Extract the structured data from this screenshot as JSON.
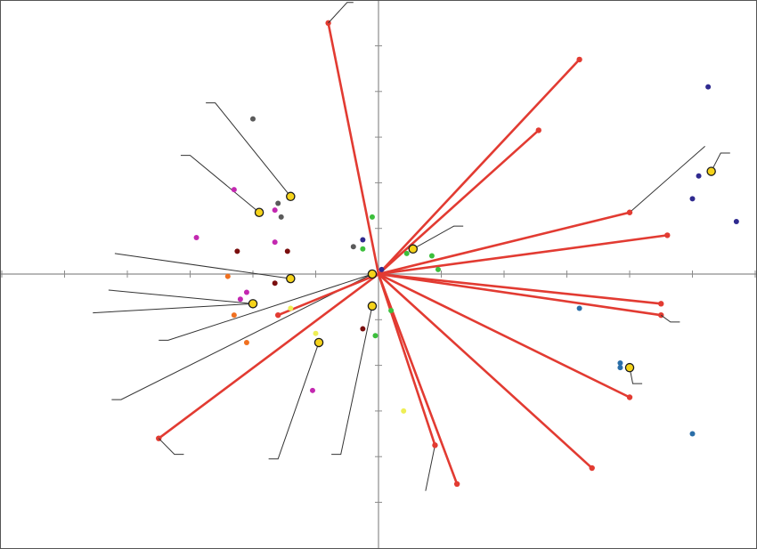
{
  "chart_data": {
    "type": "scatter",
    "title": "",
    "xlabel": "",
    "ylabel": "",
    "xlim": [
      -6,
      6
    ],
    "ylim": [
      -6,
      6
    ],
    "tick_step": 1,
    "grid": false,
    "legend": "none",
    "colors": {
      "frame": "#555555",
      "axis": "#8c8c8c",
      "vector": "#e23b32",
      "leader": "#333333",
      "highlight_fill": "#f5d31a",
      "highlight_stroke": "#1a1a1a"
    },
    "vectors": [
      {
        "x": -0.8,
        "y": 5.5
      },
      {
        "x": 3.2,
        "y": 4.7
      },
      {
        "x": 2.55,
        "y": 3.15
      },
      {
        "x": 4.0,
        "y": 1.35
      },
      {
        "x": 4.6,
        "y": 0.85
      },
      {
        "x": 4.5,
        "y": -0.65
      },
      {
        "x": 4.5,
        "y": -0.9
      },
      {
        "x": 4.0,
        "y": -2.7
      },
      {
        "x": 3.4,
        "y": -4.25
      },
      {
        "x": 1.25,
        "y": -4.6
      },
      {
        "x": 0.9,
        "y": -3.75
      },
      {
        "x": -3.5,
        "y": -3.6
      },
      {
        "x": -1.6,
        "y": -0.9
      }
    ],
    "vector_label_leaders": [
      {
        "x": -0.8,
        "y": 5.5,
        "elbow": [
          -0.5,
          5.95
        ],
        "end": [
          -0.4,
          5.95
        ]
      },
      {
        "x": -3.5,
        "y": -3.6,
        "elbow": [
          -3.25,
          -3.95
        ],
        "end": [
          -3.1,
          -3.95
        ]
      },
      {
        "x": 4.5,
        "y": -0.9,
        "elbow": [
          4.65,
          -1.05
        ],
        "end": [
          4.8,
          -1.05
        ]
      }
    ],
    "highlighted_points": [
      {
        "x": -1.4,
        "y": 1.7
      },
      {
        "x": -1.9,
        "y": 1.35
      },
      {
        "x": 0.55,
        "y": 0.55
      },
      {
        "x": -1.4,
        "y": -0.1
      },
      {
        "x": -2.0,
        "y": -0.65
      },
      {
        "x": -0.95,
        "y": -1.5
      },
      {
        "x": -0.1,
        "y": -0.7
      },
      {
        "x": -0.1,
        "y": 0.0
      },
      {
        "x": 5.3,
        "y": 2.25
      },
      {
        "x": 4.0,
        "y": -2.05
      }
    ],
    "point_label_leaders": [
      {
        "from": [
          -1.4,
          1.7
        ],
        "elbow": [
          -2.6,
          3.75
        ],
        "end": [
          -2.75,
          3.75
        ]
      },
      {
        "from": [
          -1.9,
          1.35
        ],
        "elbow": [
          -3.0,
          2.6
        ],
        "end": [
          -3.15,
          2.6
        ]
      },
      {
        "from": [
          0.55,
          0.55
        ],
        "elbow": [
          1.2,
          1.05
        ],
        "end": [
          1.35,
          1.05
        ]
      },
      {
        "from": [
          -1.4,
          -0.1
        ],
        "elbow": [
          -4.2,
          0.45
        ],
        "end": [
          -4.2,
          0.45
        ]
      },
      {
        "from": [
          -2.0,
          -0.65
        ],
        "elbow": [
          -4.3,
          -0.35
        ],
        "end": [
          -4.3,
          -0.35
        ]
      },
      {
        "from": [
          -2.0,
          -0.65
        ],
        "elbow": [
          -4.55,
          -0.85
        ],
        "end": [
          -4.55,
          -0.85
        ]
      },
      {
        "from": [
          -0.95,
          -1.5
        ],
        "elbow": [
          -1.6,
          -4.05
        ],
        "end": [
          -1.75,
          -4.05
        ]
      },
      {
        "from": [
          -0.1,
          -0.7
        ],
        "elbow": [
          -0.6,
          -3.95
        ],
        "end": [
          -0.75,
          -3.95
        ]
      },
      {
        "from": [
          -0.1,
          0.0
        ],
        "elbow": [
          -3.35,
          -1.45
        ],
        "end": [
          -3.5,
          -1.45
        ]
      },
      {
        "from": [
          -0.1,
          0.0
        ],
        "elbow": [
          -4.1,
          -2.75
        ],
        "end": [
          -4.25,
          -2.75
        ]
      },
      {
        "from": [
          5.3,
          2.25
        ],
        "elbow": [
          5.45,
          2.65
        ],
        "end": [
          5.6,
          2.65
        ]
      },
      {
        "from": [
          4.0,
          -2.05
        ],
        "elbow": [
          4.05,
          -2.4
        ],
        "end": [
          4.2,
          -2.4
        ]
      },
      {
        "from": [
          4.0,
          1.35
        ],
        "elbow": [
          5.2,
          2.8
        ],
        "end": [
          5.2,
          2.8
        ]
      },
      {
        "from": [
          0.9,
          -3.75
        ],
        "elbow": [
          0.75,
          -4.75
        ],
        "end": [
          0.75,
          -4.75
        ]
      }
    ],
    "series": [
      {
        "color": "#2f2a8f",
        "points": [
          [
            5.25,
            4.1
          ],
          [
            5.1,
            2.15
          ],
          [
            5.0,
            1.65
          ],
          [
            5.7,
            1.15
          ],
          [
            -0.25,
            0.75
          ],
          [
            0.05,
            0.1
          ]
        ]
      },
      {
        "color": "#5a5a5a",
        "points": [
          [
            -2.0,
            3.4
          ],
          [
            -1.6,
            1.55
          ],
          [
            -1.55,
            1.25
          ],
          [
            -0.4,
            0.6
          ]
        ]
      },
      {
        "color": "#c328b0",
        "points": [
          [
            -2.3,
            1.85
          ],
          [
            -2.9,
            0.8
          ],
          [
            -1.65,
            1.4
          ],
          [
            -1.65,
            0.7
          ],
          [
            -2.2,
            -0.55
          ],
          [
            -2.1,
            -0.4
          ],
          [
            -1.05,
            -2.55
          ]
        ]
      },
      {
        "color": "#7a0e0e",
        "points": [
          [
            -2.25,
            0.5
          ],
          [
            -1.45,
            0.5
          ],
          [
            -1.65,
            -0.2
          ],
          [
            -0.25,
            -1.2
          ]
        ]
      },
      {
        "color": "#f07020",
        "points": [
          [
            -2.4,
            -0.05
          ],
          [
            -2.3,
            -0.9
          ],
          [
            -2.1,
            -1.5
          ]
        ]
      },
      {
        "color": "#3cbf3c",
        "points": [
          [
            -0.1,
            1.25
          ],
          [
            -0.25,
            0.55
          ],
          [
            0.45,
            0.45
          ],
          [
            0.85,
            0.4
          ],
          [
            0.95,
            0.1
          ],
          [
            0.2,
            -0.8
          ],
          [
            -0.05,
            -1.35
          ]
        ]
      },
      {
        "color": "#eeee55",
        "points": [
          [
            -1.4,
            -0.75
          ],
          [
            -1.0,
            -1.3
          ],
          [
            0.4,
            -3.0
          ]
        ]
      },
      {
        "color": "#2a6ea8",
        "points": [
          [
            3.2,
            -0.75
          ],
          [
            3.85,
            -1.95
          ],
          [
            3.85,
            -2.05
          ],
          [
            5.0,
            -3.5
          ]
        ]
      }
    ]
  }
}
